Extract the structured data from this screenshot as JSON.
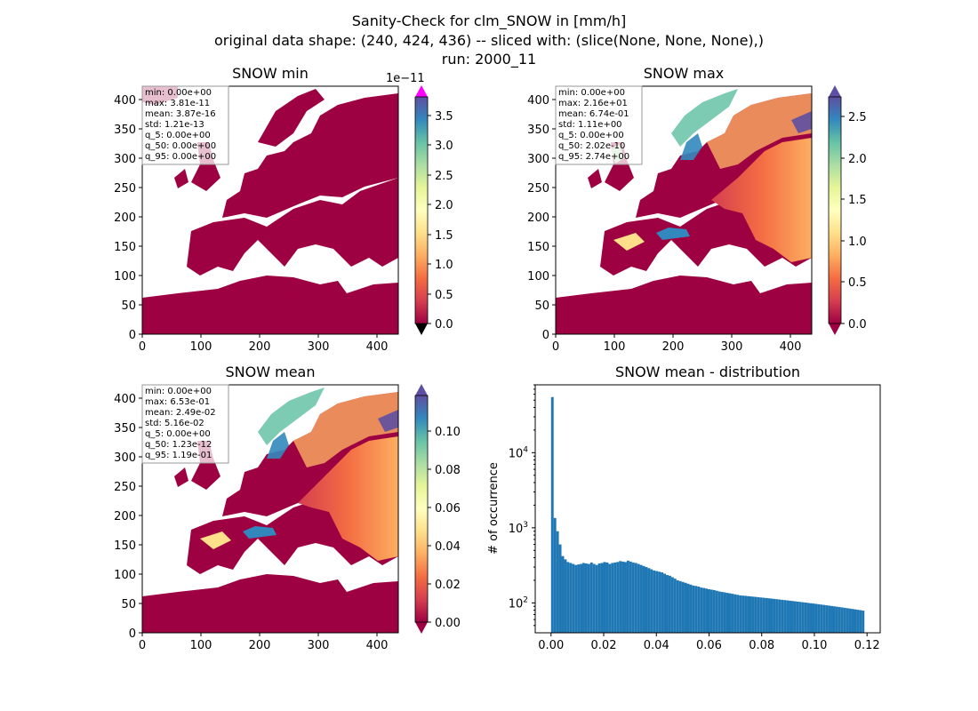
{
  "chart_data": {
    "title_lines": [
      "Sanity-Check for clm_SNOW in [mm/h]",
      "original data shape: (240, 424, 436) -- sliced with: (slice(None, None, None),)",
      "run: 2000_11"
    ],
    "panels": [
      {
        "title": "SNOW min",
        "type": "heatmap",
        "xticks": [
          "0",
          "100",
          "200",
          "300",
          "400"
        ],
        "yticks": [
          "0",
          "50",
          "100",
          "150",
          "200",
          "250",
          "300",
          "350",
          "400"
        ],
        "stats": [
          "min: 0.00e+00",
          "max: 3.81e-11",
          "mean: 3.87e-16",
          "std: 1.21e-13",
          "q_5: 0.00e+00",
          "q_50: 0.00e+00",
          "q_95: 0.00e+00"
        ],
        "colorbar": {
          "ticks": [
            "0.0",
            "0.5",
            "1.0",
            "1.5",
            "2.0",
            "2.5",
            "3.0",
            "3.5"
          ],
          "exponent": "1e−11",
          "extend": "both",
          "over_color": "#ff00ff",
          "under_color": "#000000",
          "range": [
            0,
            3.81
          ]
        }
      },
      {
        "title": "SNOW max",
        "type": "heatmap",
        "xticks": [
          "0",
          "100",
          "200",
          "300",
          "400"
        ],
        "yticks": [
          "0",
          "50",
          "100",
          "150",
          "200",
          "250",
          "300",
          "350",
          "400"
        ],
        "stats": [
          "min: 0.00e+00",
          "max: 2.16e+01",
          "mean: 6.74e-01",
          "std: 1.11e+00",
          "q_5: 0.00e+00",
          "q_50: 2.02e-10",
          "q_95: 2.74e+00"
        ],
        "colorbar": {
          "ticks": [
            "0.0",
            "0.5",
            "1.0",
            "1.5",
            "2.0",
            "2.5"
          ],
          "exponent": "",
          "extend": "both",
          "range": [
            0,
            2.74
          ]
        }
      },
      {
        "title": "SNOW mean",
        "type": "heatmap",
        "xticks": [
          "0",
          "100",
          "200",
          "300",
          "400"
        ],
        "yticks": [
          "0",
          "50",
          "100",
          "150",
          "200",
          "250",
          "300",
          "350",
          "400"
        ],
        "stats": [
          "min: 0.00e+00",
          "max: 6.53e-01",
          "mean: 2.49e-02",
          "std: 5.16e-02",
          "q_5: 0.00e+00",
          "q_50: 1.23e-12",
          "q_95: 1.19e-01"
        ],
        "colorbar": {
          "ticks": [
            "0.00",
            "0.02",
            "0.04",
            "0.06",
            "0.08",
            "0.10"
          ],
          "exponent": "",
          "extend": "both",
          "range": [
            0,
            0.119
          ]
        }
      },
      {
        "title": "SNOW mean - distribution",
        "type": "bar",
        "ylabel": "# of occurrence",
        "yscale": "log",
        "xticks": [
          "0.00",
          "0.02",
          "0.04",
          "0.06",
          "0.08",
          "0.10",
          "0.12"
        ],
        "xlim": [
          -0.006,
          0.125
        ],
        "ylim": [
          40,
          80000
        ],
        "bar_color": "#1f77b4",
        "bins": [
          0.0,
          0.119
        ],
        "approx_counts": [
          55000,
          1350,
          900,
          600,
          420,
          380,
          350,
          340,
          330,
          320,
          325,
          330,
          340,
          335,
          330,
          345,
          330,
          320,
          335,
          340,
          350,
          345,
          330,
          340,
          345,
          350,
          360,
          355,
          350,
          365,
          355,
          345,
          340,
          330,
          320,
          310,
          300,
          290,
          280,
          270,
          265,
          260,
          255,
          245,
          235,
          230,
          220,
          210,
          200,
          195,
          190,
          185,
          180,
          175,
          170,
          168,
          165,
          160,
          158,
          155,
          152,
          150,
          148,
          145,
          142,
          140,
          138,
          136,
          134,
          132,
          130,
          128,
          126,
          125,
          124,
          123,
          122,
          121,
          120,
          119,
          118,
          117,
          116,
          115,
          114,
          113,
          112,
          111,
          110,
          109,
          108,
          107,
          106,
          105,
          104,
          103,
          102,
          101,
          100,
          99,
          98,
          97,
          96,
          95,
          94,
          93,
          92,
          91,
          90,
          89,
          88,
          87,
          86,
          85,
          84,
          83,
          82,
          81,
          80,
          79
        ]
      }
    ]
  }
}
